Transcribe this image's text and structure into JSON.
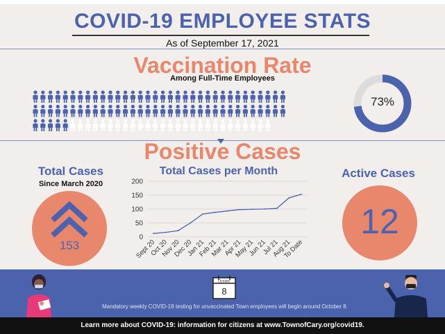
{
  "header": {
    "title": "COVID-19 EMPLOYEE STATS",
    "subtitle": "As of September 17, 2021"
  },
  "vaccination": {
    "title": "Vaccination Rate",
    "subtitle": "Among Full-Time Employees",
    "rate_label": "73%",
    "rate_fraction": 0.73,
    "colors": {
      "filled": "#4b62ad",
      "empty": "#ffffff",
      "ring_track": "#dcdcdc"
    }
  },
  "positive": {
    "title": "Positive Cases",
    "total_title": "Total Cases",
    "total_subtitle": "Since March 2020",
    "total_value": "153",
    "active_title": "Active Cases",
    "active_value": "12",
    "monthly_title": "Total Cases per Month"
  },
  "chart_data": {
    "type": "line",
    "title": "Total Cases per Month",
    "categories": [
      "Sept 20",
      "Oct 20",
      "Nov 20",
      "Dec 20",
      "Jan 21",
      "Feb 21",
      "Mar 21",
      "Apr 21",
      "May 21",
      "Jun 21",
      "Jul 21",
      "Aug 21",
      "To Date"
    ],
    "values": [
      12,
      16,
      22,
      50,
      82,
      88,
      93,
      98,
      99,
      100,
      102,
      140,
      153
    ],
    "ylim": [
      0,
      200
    ],
    "yticks": [
      0,
      50,
      100,
      150,
      200
    ],
    "grid": true,
    "line_color": "#4b62ad"
  },
  "banner": {
    "calendar_month": "October",
    "calendar_day": "8",
    "notice": "Mandatory weekly COVID-19 testing for unvaccinated Town employees will begin around October 8."
  },
  "footer": {
    "text": "Learn more about COVID-19: information for citizens at www.TownofCary.org/covid19."
  },
  "colors": {
    "brand_blue": "#4b62ad",
    "accent_orange": "#e8876c",
    "background": "#f1eeeb"
  }
}
